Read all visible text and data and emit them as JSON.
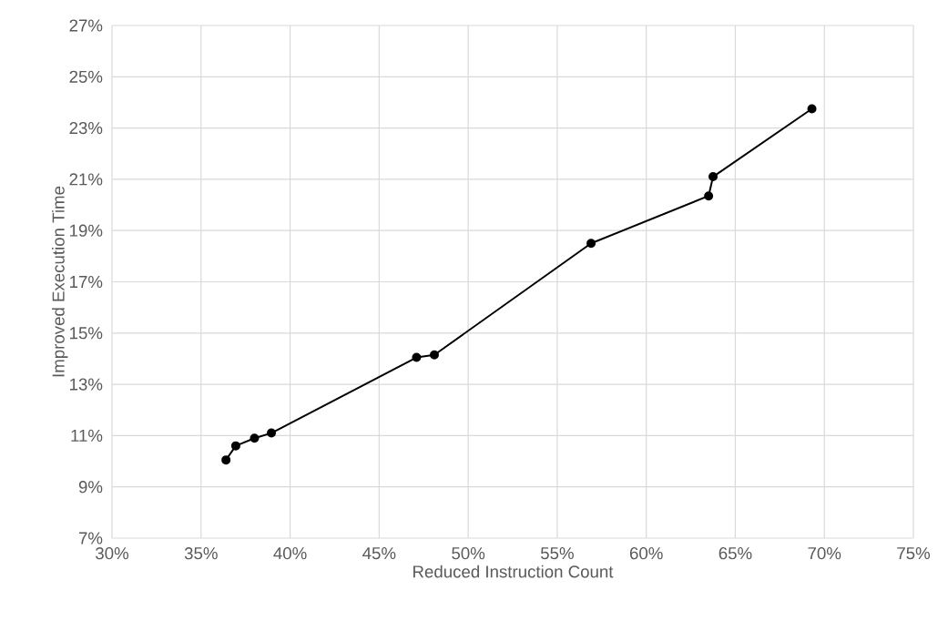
{
  "chart_data": {
    "type": "line",
    "xlabel": "Reduced Instruction Count",
    "ylabel": "Improved Execution Time",
    "x": [
      36.4,
      36.95,
      38.0,
      38.95,
      47.1,
      48.1,
      56.9,
      63.5,
      63.75,
      69.3
    ],
    "series": [
      {
        "color": "#000000",
        "values": [
          10.05,
          10.6,
          10.9,
          11.1,
          14.05,
          14.15,
          18.5,
          20.35,
          21.1,
          23.75
        ]
      }
    ],
    "marker": "circle",
    "line_style": "solid",
    "grid": true,
    "xlim": [
      30,
      75
    ],
    "ylim": [
      7,
      27
    ],
    "xticks": [
      {
        "value": 30,
        "label": "30%"
      },
      {
        "value": 35,
        "label": "35%"
      },
      {
        "value": 40,
        "label": "40%"
      },
      {
        "value": 45,
        "label": "45%"
      },
      {
        "value": 50,
        "label": "50%"
      },
      {
        "value": 55,
        "label": "55%"
      },
      {
        "value": 60,
        "label": "60%"
      },
      {
        "value": 65,
        "label": "65%"
      },
      {
        "value": 70,
        "label": "70%"
      },
      {
        "value": 75,
        "label": "75%"
      }
    ],
    "yticks": [
      {
        "value": 7,
        "label": "7%"
      },
      {
        "value": 9,
        "label": "9%"
      },
      {
        "value": 11,
        "label": "11%"
      },
      {
        "value": 13,
        "label": "13%"
      },
      {
        "value": 15,
        "label": "15%"
      },
      {
        "value": 17,
        "label": "17%"
      },
      {
        "value": 19,
        "label": "19%"
      },
      {
        "value": 21,
        "label": "21%"
      },
      {
        "value": 23,
        "label": "23%"
      },
      {
        "value": 25,
        "label": "25%"
      },
      {
        "value": 27,
        "label": "27%"
      }
    ]
  }
}
